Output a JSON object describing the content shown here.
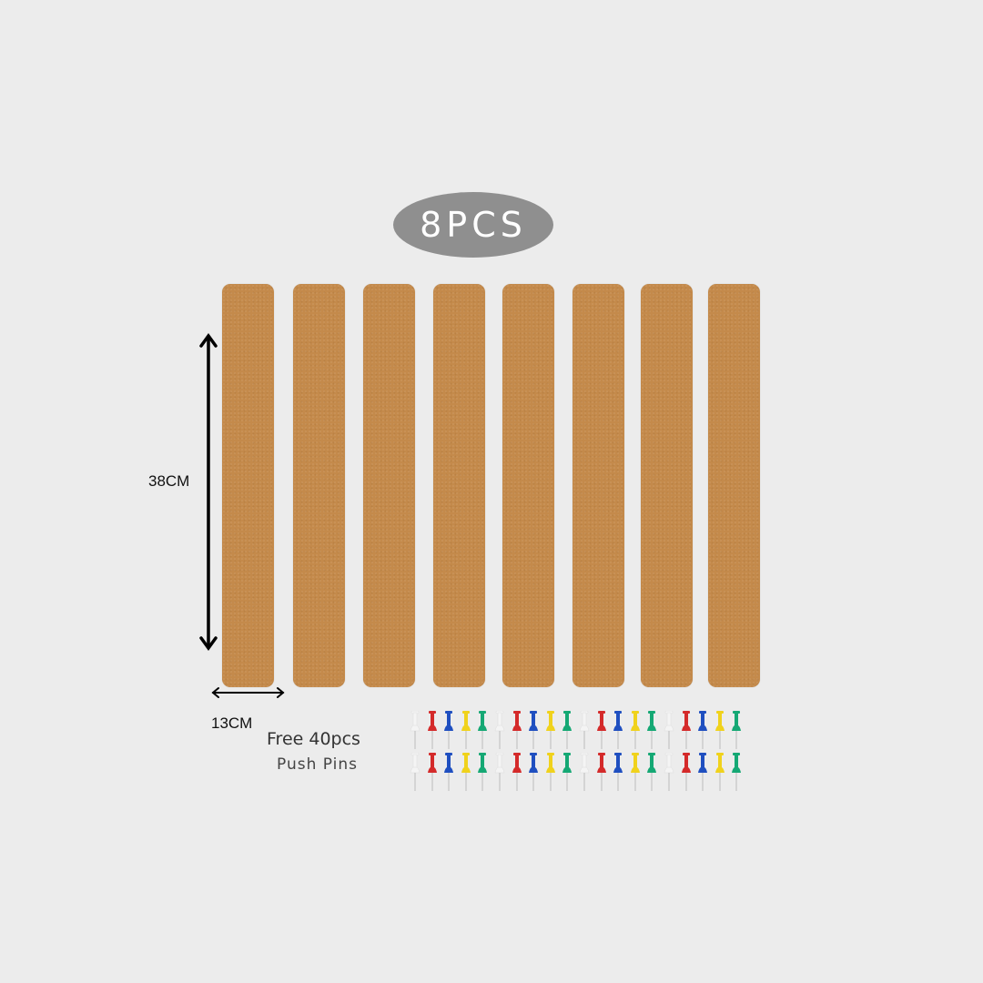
{
  "badge": {
    "text": "8PCS",
    "color": "#8f8f8f"
  },
  "strips": {
    "count": 8,
    "color": "#c48a4b"
  },
  "dimensions": {
    "height": "38CM",
    "width": "13CM"
  },
  "pins_caption": {
    "line1": "Free 40pcs",
    "line2": "Push Pins"
  },
  "pins": {
    "rows": 2,
    "groups_per_row": 4,
    "colors": [
      "#f4f4f4",
      "#d42a2a",
      "#1f4fc0",
      "#f0d21c",
      "#15a874"
    ]
  }
}
